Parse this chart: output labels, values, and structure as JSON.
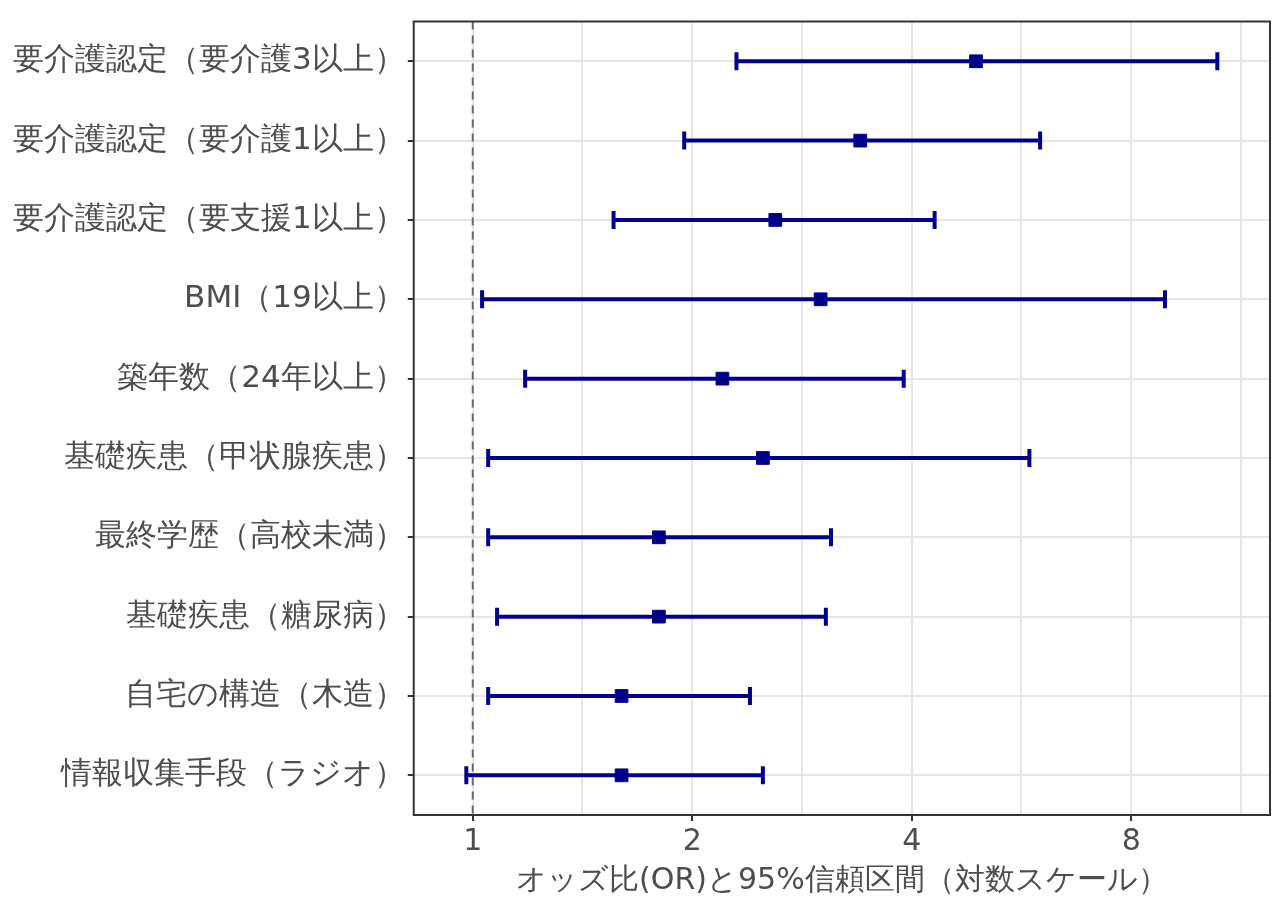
{
  "chart_data": {
    "type": "scatter",
    "orientation": "horizontal",
    "xlabel": "オッズ比(OR)と95%信頼区間（対数スケール）",
    "categories": [
      "要介護認定（要介護3以上）",
      "要介護認定（要介護1以上）",
      "要介護認定（要支援1以上）",
      "BMI（19以上）",
      "築年数（24年以上）",
      "基礎疾患（甲状腺疾患）",
      "最終学歴（高校未満）",
      "基礎疾患（糖尿病）",
      "自宅の構造（木造）",
      "情報収集手段（ラジオ）"
    ],
    "values": [
      4.9,
      3.4,
      2.6,
      3.0,
      2.2,
      2.5,
      1.8,
      1.8,
      1.6,
      1.6
    ],
    "errors": [
      [
        2.3,
        10.5
      ],
      [
        1.95,
        6.0
      ],
      [
        1.56,
        4.3
      ],
      [
        1.03,
        8.9
      ],
      [
        1.18,
        3.9
      ],
      [
        1.05,
        5.8
      ],
      [
        1.05,
        3.1
      ],
      [
        1.08,
        3.05
      ],
      [
        1.05,
        2.4
      ],
      [
        0.98,
        2.5
      ]
    ],
    "color": "#00008b",
    "marker": "square",
    "log": "x",
    "xlim": [
      0.83,
      12.4
    ],
    "xticks": [
      1,
      {
        "value": 1.414,
        "label": null
      },
      2,
      {
        "value": 2.828,
        "label": null
      },
      4,
      {
        "value": 5.657,
        "label": null
      },
      8,
      {
        "value": 11.31,
        "label": null
      }
    ],
    "grid": true,
    "legend": false,
    "ref_lines": [
      {
        "axis": "x",
        "value": 1,
        "color": "#666666",
        "line_style": "dashed"
      }
    ]
  }
}
